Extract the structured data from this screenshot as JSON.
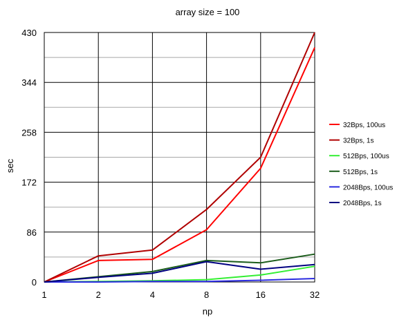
{
  "chart_data": {
    "type": "line",
    "title": "array size = 100",
    "xlabel": "np",
    "ylabel": "sec",
    "x": [
      "1",
      "2",
      "4",
      "8",
      "16",
      "32"
    ],
    "yticks": [
      "0",
      "86",
      "172",
      "258",
      "344",
      "430"
    ],
    "ylim": [
      0,
      430
    ],
    "grid": true,
    "legend_position": "right",
    "series": [
      {
        "name": "32Bps, 100us",
        "color": "#ff0000",
        "values": [
          0,
          37,
          39,
          90,
          196,
          404
        ]
      },
      {
        "name": "32Bps, 1s",
        "color": "#b00000",
        "values": [
          0,
          45,
          55,
          125,
          215,
          430
        ]
      },
      {
        "name": "512Bps, 100us",
        "color": "#33ee33",
        "values": [
          0,
          1,
          2,
          4,
          12,
          27
        ]
      },
      {
        "name": "512Bps, 1s",
        "color": "#1a5c1a",
        "values": [
          0,
          9,
          18,
          37,
          33,
          48
        ]
      },
      {
        "name": "2048Bps, 100us",
        "color": "#2a2ae0",
        "values": [
          0,
          0,
          1,
          1,
          3,
          6
        ]
      },
      {
        "name": "2048Bps, 1s",
        "color": "#000080",
        "values": [
          0,
          8,
          15,
          35,
          22,
          30
        ]
      }
    ]
  }
}
